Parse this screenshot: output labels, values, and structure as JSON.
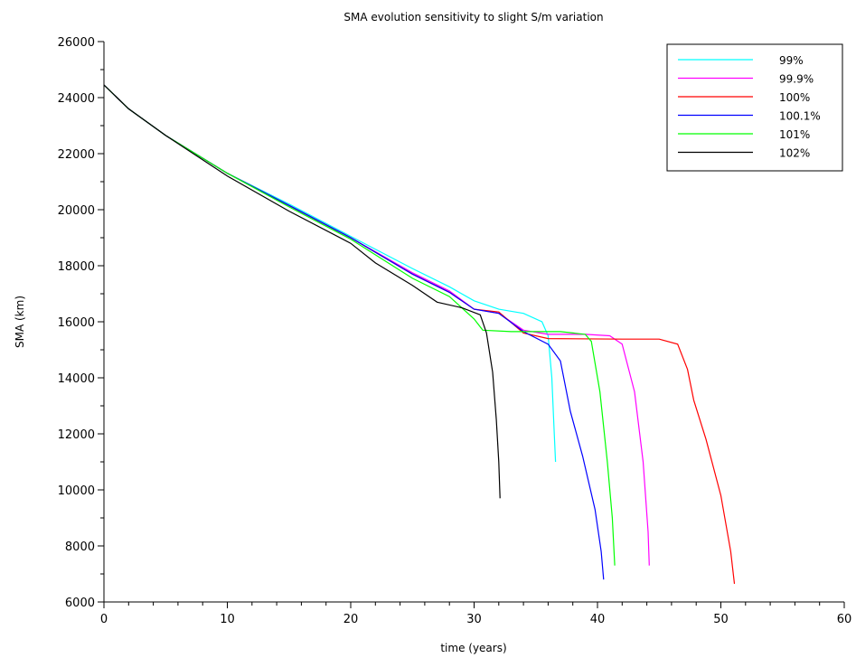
{
  "chart_data": {
    "type": "line",
    "title": "SMA evolution sensitivity to slight S/m variation",
    "xlabel": "time (years)",
    "ylabel": "SMA (km)",
    "xlim": [
      0,
      60
    ],
    "ylim": [
      6000,
      26000
    ],
    "x_ticks": [
      0,
      10,
      20,
      30,
      40,
      50,
      60
    ],
    "y_ticks": [
      6000,
      8000,
      10000,
      12000,
      14000,
      16000,
      18000,
      20000,
      22000,
      24000,
      26000
    ],
    "legend": {
      "position": "top-right"
    },
    "grid": false,
    "series": [
      {
        "name": "99%",
        "color": "#00ffff",
        "points": [
          [
            0,
            24450
          ],
          [
            2,
            23600
          ],
          [
            5,
            22650
          ],
          [
            10,
            21300
          ],
          [
            15,
            20200
          ],
          [
            20,
            19050
          ],
          [
            25,
            17900
          ],
          [
            28,
            17250
          ],
          [
            30,
            16750
          ],
          [
            32,
            16450
          ],
          [
            34,
            16300
          ],
          [
            35.5,
            16000
          ],
          [
            36,
            15500
          ],
          [
            36.3,
            14000
          ],
          [
            36.5,
            12000
          ],
          [
            36.6,
            11000
          ]
        ]
      },
      {
        "name": "99.9%",
        "color": "#ff00ff",
        "points": [
          [
            0,
            24450
          ],
          [
            2,
            23600
          ],
          [
            5,
            22650
          ],
          [
            10,
            21300
          ],
          [
            15,
            20150
          ],
          [
            20,
            19000
          ],
          [
            25,
            17750
          ],
          [
            28,
            17100
          ],
          [
            30,
            16450
          ],
          [
            32,
            16300
          ],
          [
            34,
            15700
          ],
          [
            36,
            15550
          ],
          [
            39,
            15550
          ],
          [
            41,
            15500
          ],
          [
            42,
            15200
          ],
          [
            43,
            13500
          ],
          [
            43.7,
            11000
          ],
          [
            44.1,
            8500
          ],
          [
            44.2,
            7300
          ]
        ]
      },
      {
        "name": "100%",
        "color": "#ff0000",
        "points": [
          [
            0,
            24450
          ],
          [
            2,
            23600
          ],
          [
            5,
            22650
          ],
          [
            10,
            21300
          ],
          [
            15,
            20150
          ],
          [
            20,
            19000
          ],
          [
            25,
            17700
          ],
          [
            28,
            17050
          ],
          [
            30,
            16450
          ],
          [
            32,
            16350
          ],
          [
            34,
            15600
          ],
          [
            36,
            15400
          ],
          [
            42,
            15380
          ],
          [
            45,
            15380
          ],
          [
            46.5,
            15200
          ],
          [
            47.3,
            14300
          ],
          [
            47.8,
            13200
          ],
          [
            48.8,
            11800
          ],
          [
            50,
            9800
          ],
          [
            50.8,
            7800
          ],
          [
            51.1,
            6650
          ]
        ]
      },
      {
        "name": "100.1%",
        "color": "#0000ff",
        "points": [
          [
            0,
            24450
          ],
          [
            2,
            23600
          ],
          [
            5,
            22650
          ],
          [
            10,
            21300
          ],
          [
            15,
            20150
          ],
          [
            20,
            19000
          ],
          [
            25,
            17700
          ],
          [
            28,
            17050
          ],
          [
            30,
            16450
          ],
          [
            32,
            16300
          ],
          [
            34,
            15650
          ],
          [
            36,
            15200
          ],
          [
            37,
            14600
          ],
          [
            37.8,
            12800
          ],
          [
            38.8,
            11200
          ],
          [
            39.8,
            9300
          ],
          [
            40.3,
            7800
          ],
          [
            40.5,
            6800
          ]
        ]
      },
      {
        "name": "101%",
        "color": "#00ff00",
        "points": [
          [
            0,
            24450
          ],
          [
            2,
            23600
          ],
          [
            5,
            22650
          ],
          [
            10,
            21300
          ],
          [
            15,
            20100
          ],
          [
            20,
            18950
          ],
          [
            25,
            17550
          ],
          [
            28,
            16900
          ],
          [
            30,
            16100
          ],
          [
            30.7,
            15700
          ],
          [
            33,
            15650
          ],
          [
            37,
            15650
          ],
          [
            39,
            15550
          ],
          [
            39.5,
            15300
          ],
          [
            40.2,
            13500
          ],
          [
            40.8,
            11000
          ],
          [
            41.2,
            9000
          ],
          [
            41.4,
            7300
          ]
        ]
      },
      {
        "name": "102%",
        "color": "#000000",
        "points": [
          [
            0,
            24450
          ],
          [
            2,
            23600
          ],
          [
            5,
            22650
          ],
          [
            10,
            21200
          ],
          [
            15,
            19950
          ],
          [
            20,
            18800
          ],
          [
            22,
            18100
          ],
          [
            25,
            17300
          ],
          [
            27,
            16700
          ],
          [
            29,
            16500
          ],
          [
            30.5,
            16250
          ],
          [
            31,
            15600
          ],
          [
            31.5,
            14200
          ],
          [
            31.8,
            12500
          ],
          [
            32,
            11000
          ],
          [
            32.1,
            9700
          ]
        ]
      }
    ]
  }
}
